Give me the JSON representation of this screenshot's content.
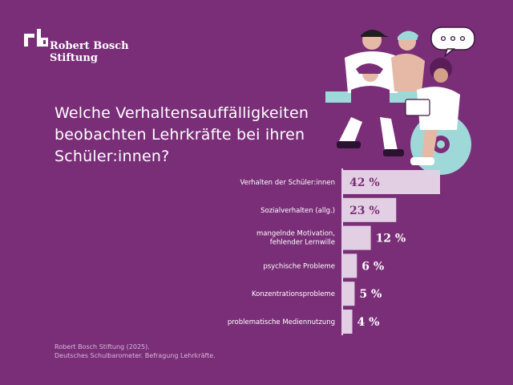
{
  "brand": {
    "name_line1": "Robert Bosch",
    "name_line2": "Stiftung"
  },
  "title_lines": [
    "Welche Verhaltensauffälligkeiten",
    "beobachten Lehrkräfte bei ihren",
    "Schüler:innen?"
  ],
  "chart_data": {
    "type": "bar",
    "orientation": "horizontal",
    "categories": [
      [
        "Verhalten der Schüler:innen"
      ],
      [
        "Sozialverhalten (allg.)"
      ],
      [
        "mangelnde Motivation,",
        "fehlender Lernwille"
      ],
      [
        "psychische Probleme"
      ],
      [
        "Konzentrationsprobleme"
      ],
      [
        "problematische Mediennutzung"
      ]
    ],
    "values": [
      42,
      23,
      12,
      6,
      5,
      4
    ],
    "value_labels": [
      "42 %",
      "23 %",
      "12 %",
      "6 %",
      "5 %",
      "4 %"
    ],
    "unit": "%",
    "xlim": [
      0,
      42
    ],
    "grid": false,
    "bar_color": "#e3cfe4",
    "axis_color": "#e3cfe4"
  },
  "source_lines": [
    "Robert Bosch Stiftung (2025).",
    "Deutsches Schulbarometer. Befragung Lehrkräfte."
  ],
  "colors": {
    "background": "#7a2e78",
    "text": "#ffffff",
    "bar": "#e3cfe4",
    "value_label": "#7a2e78",
    "accent_teal": "#9fd8d8"
  }
}
